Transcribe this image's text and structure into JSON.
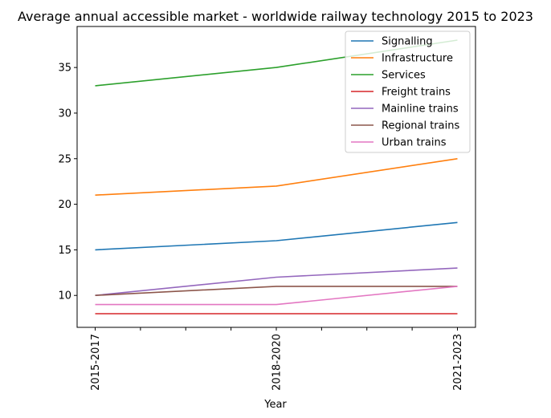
{
  "chart_data": {
    "type": "line",
    "title": "Average annual accessible market - worldwide railway technology 2015 to 2023",
    "xlabel": "Year",
    "ylabel": "",
    "categories": [
      "2015-2017",
      "2018-2020",
      "2021-2023"
    ],
    "ylim": [
      6.5,
      39.5
    ],
    "yticks": [
      10,
      15,
      20,
      25,
      30,
      35
    ],
    "grid": false,
    "legend_position": "top-right",
    "series": [
      {
        "name": "Signalling",
        "color": "#1f77b4",
        "values": [
          15,
          16,
          18
        ]
      },
      {
        "name": "Infrastructure",
        "color": "#ff7f0e",
        "values": [
          21,
          22,
          25
        ]
      },
      {
        "name": "Services",
        "color": "#2ca02c",
        "values": [
          33,
          35,
          38
        ]
      },
      {
        "name": "Freight trains",
        "color": "#d62728",
        "values": [
          8,
          8,
          8
        ]
      },
      {
        "name": "Mainline trains",
        "color": "#9467bd",
        "values": [
          10,
          12,
          13
        ]
      },
      {
        "name": "Regional trains",
        "color": "#8c564b",
        "values": [
          10,
          11,
          11
        ]
      },
      {
        "name": "Urban trains",
        "color": "#e377c2",
        "values": [
          9,
          9,
          11
        ]
      }
    ]
  }
}
